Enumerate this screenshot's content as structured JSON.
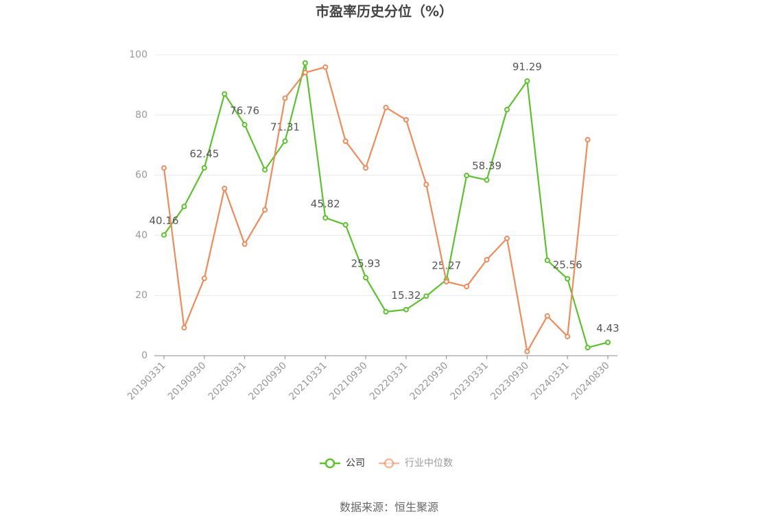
{
  "chart_data": {
    "type": "line",
    "title": "市盈率历史分位（%）",
    "categories": [
      "20190331",
      null,
      "20190930",
      null,
      "20200331",
      null,
      "20200930",
      null,
      "20210331",
      null,
      "20210930",
      null,
      "20220331",
      null,
      "20220930",
      null,
      "20230331",
      null,
      "20230930",
      null,
      "20240331",
      null,
      "20240830"
    ],
    "series": [
      {
        "name": "公司",
        "color": "#5ac32a",
        "values": [
          40.16,
          49.6,
          62.45,
          87.0,
          76.76,
          61.8,
          71.31,
          97.3,
          45.82,
          43.5,
          25.93,
          14.6,
          15.32,
          19.8,
          25.27,
          59.9,
          58.39,
          81.8,
          91.29,
          31.7,
          25.56,
          2.7,
          4.43
        ],
        "value_labels": [
          "40.16",
          null,
          "62.45",
          null,
          "76.76",
          null,
          "71.31",
          null,
          "45.82",
          null,
          "25.93",
          null,
          "15.32",
          null,
          "25.27",
          null,
          "58.39",
          null,
          "91.29",
          null,
          "25.56",
          null,
          "4.43"
        ]
      },
      {
        "name": "行业中位数",
        "color": "#f08a58",
        "values": [
          62.4,
          9.3,
          25.7,
          55.6,
          37.1,
          48.5,
          85.6,
          94.1,
          95.9,
          71.3,
          62.4,
          82.5,
          78.4,
          56.9,
          24.6,
          23.0,
          31.9,
          39.0,
          1.4,
          13.2,
          6.4,
          71.8,
          null
        ]
      }
    ],
    "ylim": [
      0,
      100
    ],
    "yticks": [
      0,
      20,
      40,
      60,
      80,
      100
    ],
    "grid": true,
    "legend": "bottom",
    "source": "数据来源：恒生聚源"
  }
}
